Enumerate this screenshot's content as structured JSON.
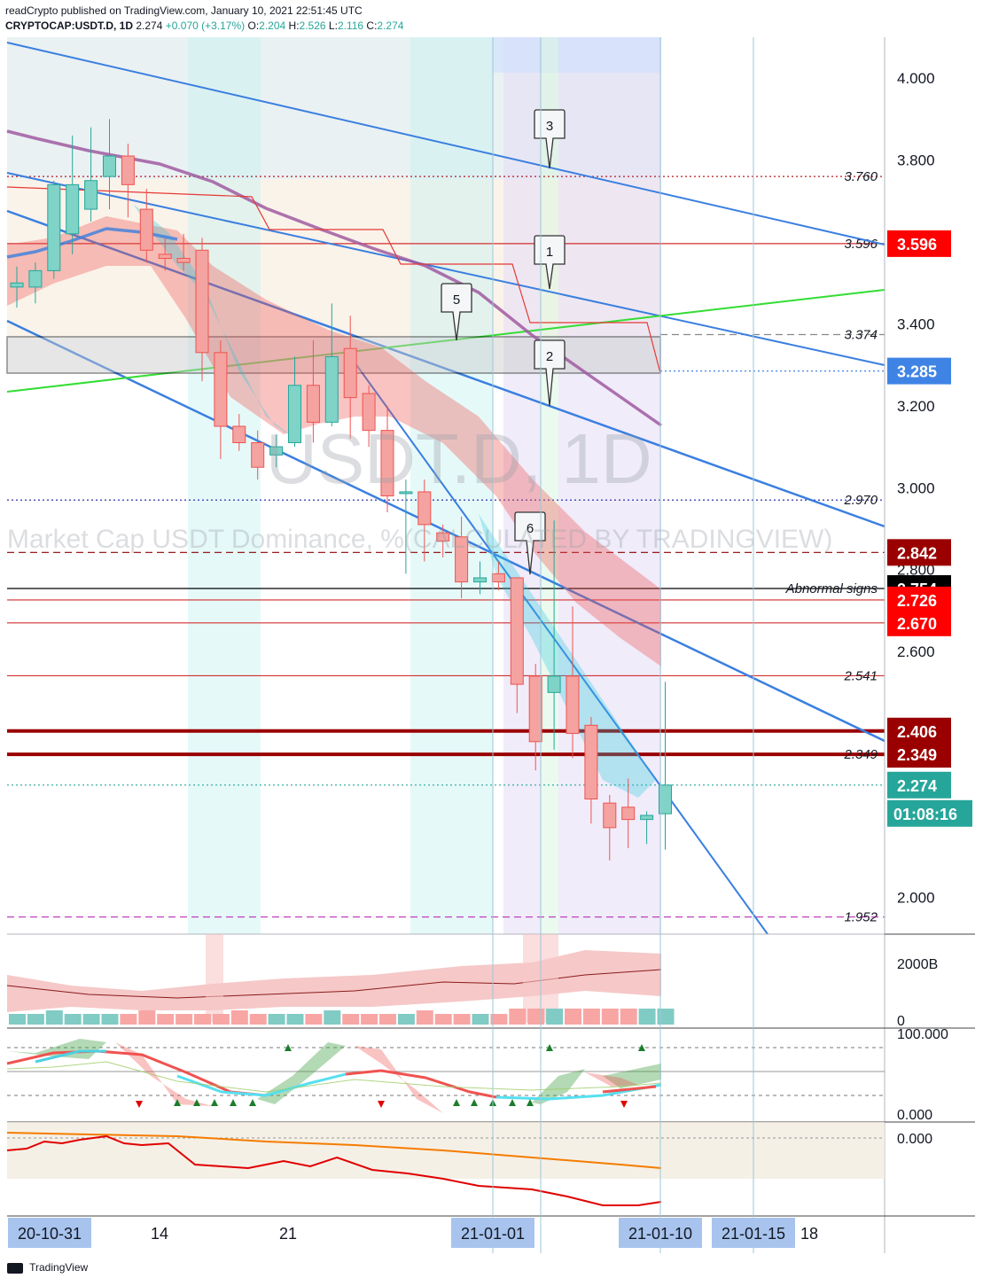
{
  "header": {
    "publisher_line": "readCrypto published on TradingView.com, January 10, 2021 22:51:45 UTC",
    "symbol": "CRYPTOCAP:USDT.D, 1D",
    "last": "2.274",
    "change": "+0.070 (+3.17%)",
    "ohlc": [
      "O:",
      "2.204",
      "H:",
      "2.526",
      "L:",
      "2.116",
      "C:",
      "2.274"
    ]
  },
  "watermark": {
    "symbol": "USDT.D, 1D",
    "description": "Market Cap USDT Dominance, %(CALCULATED BY TRADINGVIEW)"
  },
  "colors": {
    "up": "#26a69a",
    "down": "#ef5350",
    "trend": "#3a7fe0",
    "green_line": "#33dd33",
    "dark_red": "#9a0000",
    "red_label": "#ff0000",
    "black_label": "#000000",
    "teal_label": "#26a69a",
    "blue_label": "#3f84e5"
  },
  "chart_data": {
    "type": "candlestick",
    "x_labels": [
      "20-10-31",
      "14",
      "21",
      "21-01-01",
      "21-01-10",
      "21-01-15",
      "18"
    ],
    "y_ticks": [
      "4.000",
      "3.800",
      "3.400",
      "3.200",
      "3.000",
      "2.800",
      "2.600",
      "2.000"
    ],
    "ylim": [
      1.91,
      4.1
    ],
    "candles": [
      [
        3.49,
        3.54,
        3.44,
        3.5
      ],
      [
        3.49,
        3.55,
        3.45,
        3.53
      ],
      [
        3.53,
        3.75,
        3.51,
        3.74
      ],
      [
        3.62,
        3.86,
        3.57,
        3.74
      ],
      [
        3.68,
        3.88,
        3.65,
        3.75
      ],
      [
        3.76,
        3.9,
        3.68,
        3.81
      ],
      [
        3.81,
        3.84,
        3.66,
        3.74
      ],
      [
        3.68,
        3.73,
        3.55,
        3.58
      ],
      [
        3.57,
        3.61,
        3.53,
        3.56
      ],
      [
        3.56,
        3.62,
        3.53,
        3.55
      ],
      [
        3.58,
        3.61,
        3.26,
        3.33
      ],
      [
        3.33,
        3.36,
        3.07,
        3.15
      ],
      [
        3.15,
        3.18,
        3.09,
        3.11
      ],
      [
        3.11,
        3.14,
        3.02,
        3.05
      ],
      [
        3.08,
        3.13,
        3.05,
        3.1
      ],
      [
        3.11,
        3.32,
        3.1,
        3.25
      ],
      [
        3.25,
        3.36,
        3.11,
        3.16
      ],
      [
        3.16,
        3.45,
        3.15,
        3.32
      ],
      [
        3.34,
        3.42,
        3.12,
        3.22
      ],
      [
        3.23,
        3.25,
        3.1,
        3.14
      ],
      [
        3.14,
        3.2,
        2.94,
        2.98
      ],
      [
        2.99,
        3.02,
        2.79,
        2.99
      ],
      [
        2.99,
        3.02,
        2.82,
        2.91
      ],
      [
        2.89,
        2.91,
        2.83,
        2.87
      ],
      [
        2.88,
        2.93,
        2.73,
        2.77
      ],
      [
        2.77,
        2.82,
        2.74,
        2.78
      ],
      [
        2.79,
        2.82,
        2.75,
        2.77
      ],
      [
        2.78,
        2.78,
        2.45,
        2.52
      ],
      [
        2.54,
        2.57,
        2.31,
        2.38
      ],
      [
        2.5,
        2.92,
        2.36,
        2.54
      ],
      [
        2.54,
        2.71,
        2.34,
        2.4
      ],
      [
        2.42,
        2.44,
        2.18,
        2.24
      ],
      [
        2.23,
        2.25,
        2.09,
        2.17
      ],
      [
        2.22,
        2.29,
        2.12,
        2.19
      ],
      [
        2.19,
        2.21,
        2.13,
        2.2
      ],
      [
        2.204,
        2.526,
        2.116,
        2.274
      ]
    ],
    "levels": [
      {
        "value": 3.76,
        "label": "3.760",
        "style": "dotted",
        "color": "#b71c1c"
      },
      {
        "value": 3.596,
        "label": "3.596",
        "style": "solid",
        "color": "#d32f2f",
        "tag": "3.596",
        "tag_color": "#ff0000"
      },
      {
        "value": 3.374,
        "label": "3.374",
        "style": "dashed",
        "color": "#888888"
      },
      {
        "value": 3.285,
        "label": "",
        "style": "dotted",
        "color": "#3f84e5",
        "tag": "3.285",
        "tag_color": "#3f84e5"
      },
      {
        "value": 2.97,
        "label": "2.970",
        "style": "dotted",
        "color": "#1a1aa0"
      },
      {
        "value": 2.842,
        "label": "",
        "style": "dashed",
        "color": "#8b0000",
        "tag": "2.842",
        "tag_color": "#9a0000"
      },
      {
        "value": 2.754,
        "label": "Abnormal signs",
        "style": "solid",
        "color": "#000000",
        "tag": "2.754",
        "tag_color": "#000000"
      },
      {
        "value": 2.726,
        "label": "",
        "style": "solid",
        "color": "#d32f2f",
        "tag": "2.726",
        "tag_color": "#ff0000"
      },
      {
        "value": 2.67,
        "label": "",
        "style": "solid",
        "color": "#d32f2f",
        "tag": "2.670",
        "tag_color": "#ff0000"
      },
      {
        "value": 2.541,
        "label": "2.541",
        "style": "solid",
        "color": "#d32f2f"
      },
      {
        "value": 2.406,
        "label": "",
        "style": "thick",
        "color": "#9a0000",
        "tag": "2.406",
        "tag_color": "#9a0000"
      },
      {
        "value": 2.349,
        "label": "2.349",
        "style": "thick",
        "color": "#9a0000",
        "tag": "2.349",
        "tag_color": "#9a0000"
      },
      {
        "value": 2.274,
        "label": "",
        "style": "dotted",
        "color": "#26a69a",
        "tag": "2.274",
        "tag_color": "#26a69a"
      },
      {
        "value": 1.952,
        "label": "1.952",
        "style": "dashed",
        "color": "#c040c0"
      }
    ],
    "countdown": "01:08:16",
    "callouts": [
      "1",
      "2",
      "3",
      "5",
      "6"
    ],
    "volume_axis": [
      "2000B",
      "0"
    ],
    "stoch_axis": [
      "100.000",
      "0.000"
    ],
    "osc_axis": [
      "0.000"
    ]
  },
  "footer": {
    "brand": "TradingView"
  }
}
